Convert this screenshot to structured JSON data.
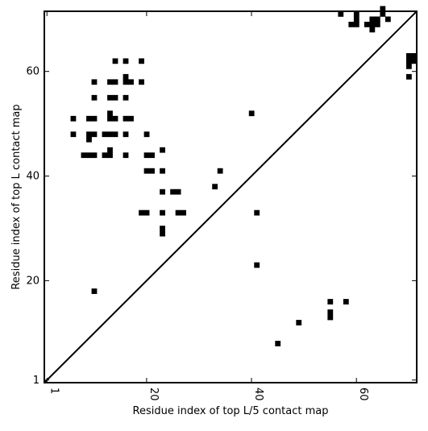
{
  "chart_data": {
    "type": "heatmap",
    "title": "",
    "xlabel": "Residue index of top L/5 contact map",
    "ylabel": "Residue index of top L contact map",
    "xlim": [
      0.5,
      71.5
    ],
    "ylim": [
      0.5,
      71.5
    ],
    "x_ticks": [
      {
        "value": 1,
        "label": "1"
      },
      {
        "value": 20,
        "label": "20"
      },
      {
        "value": 40,
        "label": "40"
      },
      {
        "value": 60,
        "label": "60"
      }
    ],
    "y_ticks": [
      {
        "value": 1,
        "label": "1"
      },
      {
        "value": 20,
        "label": "20"
      },
      {
        "value": 40,
        "label": "40"
      },
      {
        "value": 60,
        "label": "60"
      }
    ],
    "diagonal": true,
    "cell_color": "#000000",
    "upper_contacts": [
      [
        6,
        48
      ],
      [
        6,
        51
      ],
      [
        8,
        44
      ],
      [
        9,
        44
      ],
      [
        10,
        44
      ],
      [
        9,
        47
      ],
      [
        9,
        48
      ],
      [
        10,
        48
      ],
      [
        9,
        51
      ],
      [
        10,
        51
      ],
      [
        10,
        55
      ],
      [
        10,
        58
      ],
      [
        10,
        18
      ],
      [
        12,
        44
      ],
      [
        13,
        44
      ],
      [
        13,
        45
      ],
      [
        12,
        48
      ],
      [
        13,
        48
      ],
      [
        14,
        48
      ],
      [
        13,
        51
      ],
      [
        14,
        51
      ],
      [
        13,
        52
      ],
      [
        13,
        55
      ],
      [
        14,
        55
      ],
      [
        13,
        58
      ],
      [
        14,
        58
      ],
      [
        14,
        62
      ],
      [
        16,
        44
      ],
      [
        16,
        48
      ],
      [
        16,
        51
      ],
      [
        17,
        51
      ],
      [
        16,
        55
      ],
      [
        16,
        58
      ],
      [
        17,
        58
      ],
      [
        16,
        59
      ],
      [
        16,
        62
      ],
      [
        19,
        58
      ],
      [
        19,
        62
      ],
      [
        19,
        33
      ],
      [
        20,
        33
      ],
      [
        20,
        41
      ],
      [
        21,
        41
      ],
      [
        20,
        44
      ],
      [
        21,
        44
      ],
      [
        20,
        48
      ],
      [
        23,
        29
      ],
      [
        23,
        30
      ],
      [
        23,
        33
      ],
      [
        23,
        37
      ],
      [
        23,
        41
      ],
      [
        23,
        45
      ],
      [
        26,
        33
      ],
      [
        27,
        33
      ],
      [
        25,
        37
      ],
      [
        26,
        37
      ],
      [
        33,
        38
      ],
      [
        34,
        41
      ],
      [
        40,
        52
      ]
    ],
    "lower_contacts": [
      [
        41,
        23
      ],
      [
        41,
        33
      ],
      [
        45,
        8
      ],
      [
        49,
        12
      ],
      [
        55,
        13
      ],
      [
        55,
        14
      ],
      [
        55,
        16
      ],
      [
        58,
        16
      ],
      [
        57,
        71
      ],
      [
        59,
        69
      ],
      [
        60,
        69
      ],
      [
        60,
        70
      ],
      [
        60,
        71
      ],
      [
        62,
        69
      ],
      [
        63,
        69
      ],
      [
        63,
        70
      ],
      [
        64,
        69
      ],
      [
        64,
        70
      ],
      [
        63,
        68
      ],
      [
        65,
        71
      ],
      [
        65,
        72
      ],
      [
        66,
        70
      ],
      [
        70,
        59
      ],
      [
        70,
        61
      ],
      [
        70,
        62
      ],
      [
        71,
        62
      ],
      [
        70,
        63
      ],
      [
        71,
        63
      ]
    ]
  }
}
